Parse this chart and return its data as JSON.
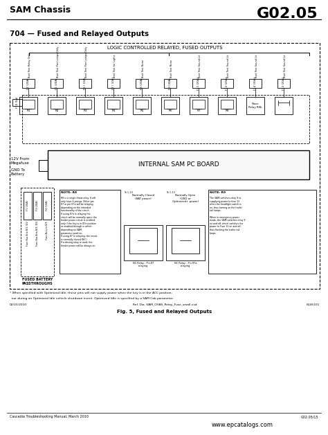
{
  "bg_color": "#ffffff",
  "title_left": "SAM Chassis",
  "title_right": "G02.05",
  "section_title": "704 — Fused and Relayed Outputs",
  "fig_caption": "Fig. 5, Fused and Relayed Outputs",
  "footer_left": "Cascadia Troubleshooting Manual, March 2010",
  "footer_right": "G02.05/15",
  "footer_url": "www.epcatalogs.com",
  "diagram_title": "LOGIC CONTROLLED RELAYED, FUSED OUTPUTS",
  "internal_board_label": "INTERNAL SAM PC BOARD",
  "fused_battery_label": "FUSED BATTERY\nPASSTHROUGHS",
  "v12_label": "12V From\nMegafuse",
  "gnd_label": "GND To\nBattery",
  "note_bottom1": "* When specified with Optimized Idle, these pins will not supply power when the key is in the ACC position,",
  "note_bottom2": "  nor during an Optimized Idle vehicle shutdown event. Optimized Idle is specified by a SAM Cab parameter.",
  "ref_text": "Ref. Dia. SAM_CHAS_Relay_Fuse_small.vsd",
  "ref_num": "6145101",
  "date_text": "02/25/2010",
  "fuses_top": [
    "F2 (20A)",
    "F5 (20A)",
    "F6 ( 15A)",
    "F7 ( 10A)",
    "F8 (20A)",
    "F9 (30A)",
    "F11 (20A)",
    "F12 (20A)",
    "F14 (30A)",
    "F13 (20A)"
  ],
  "relays_lbl": [
    "R1",
    "R2",
    "R3",
    "R4",
    "R5",
    "R6",
    "R7",
    "R8",
    "Slave\nRelay R8b",
    ""
  ],
  "fuse_f10": "F10 (5A)",
  "fuses_bottom": [
    "F1 (20A)",
    "F3 (20A)",
    "F4 (10A)"
  ],
  "bottom_labels": [
    "Fuse Bus A to B/1; B/2",
    "Fuse Bus A to B/3; B/4",
    "Fuse Accy to B/5"
  ],
  "note_r8_title": "NOTE: R8",
  "note_r8_body": "R8 is a single throw relay. It will\nonly have 4 prongs. Either pin\n87 or pin 87a will be relaying\ndepending on the intended\nfunctionality of the circuit.\nIf using 87a is relaying the\ncircuit will be normally open, the\nfeeder power circuit is enabled\nonly if the key is in IDle position\nor enabled through a switch\ndepending on SAM\nparameter position.\nIf using 87 in relaying, the circuit\nis normally closed (NC).\nIf a driving relay is used, the\nfeeder power will be always on.",
  "note_r9_title": "NOTE: R9",
  "note_r9_body": "The SAM switches relay 9 to\nsupplying power to fuse 13\nwhen the headlight switch is\non, thus turning on the trailer\ntail lamps.\n\nWhen in emergency power\nmode, the SAM switches relay 9\non and off, which switches the\npower to Fuse 13 on and off,\nthus flashing the trailer tail\nlamps.",
  "nc1_title": "Normally Closed\n(BAT power)",
  "nc2_title": "Normally Open\n(GND or\nOptimized+ power)",
  "nc1_label": "NC Relay - Pin 87\nrelaying",
  "nc2_label": "NC Relay - Pin 87a\nrelaying",
  "relay_vertical_labels": [
    "Batt Test Relay Only",
    "Batt Test Pwr Lamps Only",
    "Batt Test Pwr Lamps Only",
    "Batt Test for Lights",
    "Batt Test None",
    "Batt Test None",
    "Batt Test Sound Lit",
    "Batt Test Sound Lit",
    "Batt Test Sound Lit",
    "Batt Test Sound Lit"
  ]
}
